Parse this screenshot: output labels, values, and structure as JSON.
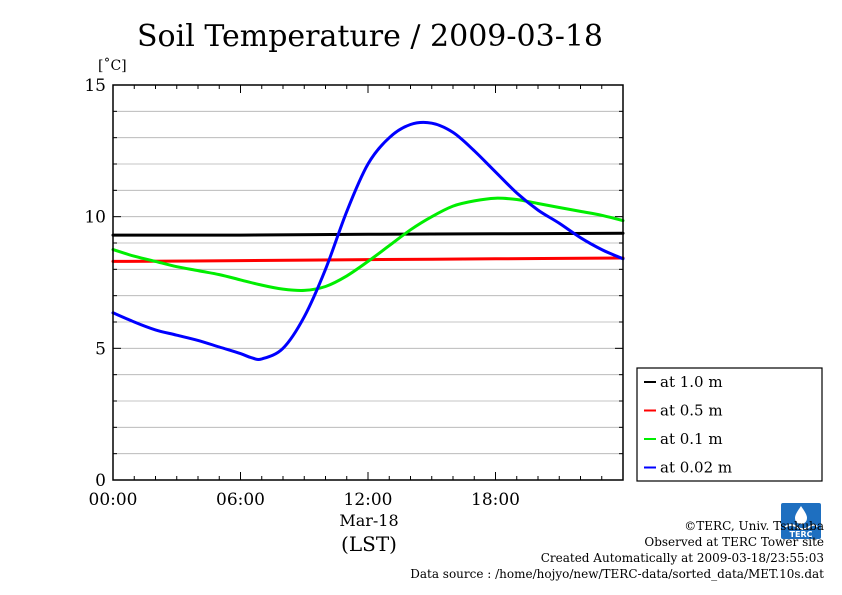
{
  "chart_data": {
    "type": "line",
    "title": "Soil Temperature / 2009-03-18",
    "ylabel": "[˚C]",
    "xlabel": "(LST)",
    "x_date_label": "Mar-18",
    "ylim": [
      0,
      15
    ],
    "xlim": [
      0,
      24
    ],
    "y_ticks": [
      "0",
      "5",
      "10",
      "15"
    ],
    "x_ticks": [
      {
        "value": 0,
        "label": "00:00"
      },
      {
        "value": 6,
        "label": "06:00"
      },
      {
        "value": 12,
        "label": "12:00"
      },
      {
        "value": 18,
        "label": "18:00"
      }
    ],
    "grid": true,
    "legend_position": "right",
    "series": [
      {
        "name": "at 1.0 m",
        "color": "#000000",
        "x": [
          0,
          6,
          12,
          18,
          24
        ],
        "y": [
          9.3,
          9.3,
          9.33,
          9.35,
          9.37
        ]
      },
      {
        "name": "at 0.5 m",
        "color": "#ff0000",
        "x": [
          0,
          6,
          12,
          18,
          24
        ],
        "y": [
          8.3,
          8.33,
          8.37,
          8.4,
          8.43
        ]
      },
      {
        "name": "at 0.1 m",
        "color": "#00ee00",
        "x": [
          0,
          1,
          2,
          3,
          4,
          5,
          6,
          7,
          8,
          9,
          10,
          11,
          12,
          13,
          14,
          15,
          16,
          17,
          18,
          19,
          20,
          21,
          22,
          23,
          24
        ],
        "y": [
          8.75,
          8.5,
          8.3,
          8.1,
          7.95,
          7.8,
          7.6,
          7.4,
          7.25,
          7.2,
          7.35,
          7.75,
          8.3,
          8.9,
          9.5,
          10.0,
          10.4,
          10.6,
          10.7,
          10.65,
          10.5,
          10.35,
          10.2,
          10.05,
          9.85
        ]
      },
      {
        "name": "at 0.02 m",
        "color": "#0000ff",
        "x": [
          0,
          1,
          2,
          3,
          4,
          5,
          6,
          6.5,
          7,
          8,
          9,
          10,
          11,
          12,
          13,
          14,
          15,
          16,
          17,
          18,
          19,
          20,
          21,
          22,
          23,
          24
        ],
        "y": [
          6.35,
          6.0,
          5.7,
          5.5,
          5.3,
          5.05,
          4.8,
          4.65,
          4.6,
          5.0,
          6.2,
          8.0,
          10.2,
          12.0,
          13.0,
          13.5,
          13.55,
          13.2,
          12.5,
          11.7,
          10.9,
          10.25,
          9.75,
          9.2,
          8.75,
          8.4
        ]
      }
    ]
  },
  "footer": {
    "copyright": "©TERC, Univ. Tsukuba",
    "observed": "Observed at TERC Tower site",
    "created": "Created Automatically at 2009-03-18/23:55:03",
    "source": "Data source : /home/hojyo/new/TERC-data/sorted_data/MET.10s.dat"
  },
  "logo": {
    "name": "terc-logo",
    "text": "TERC",
    "color": "#1e6fc0"
  }
}
